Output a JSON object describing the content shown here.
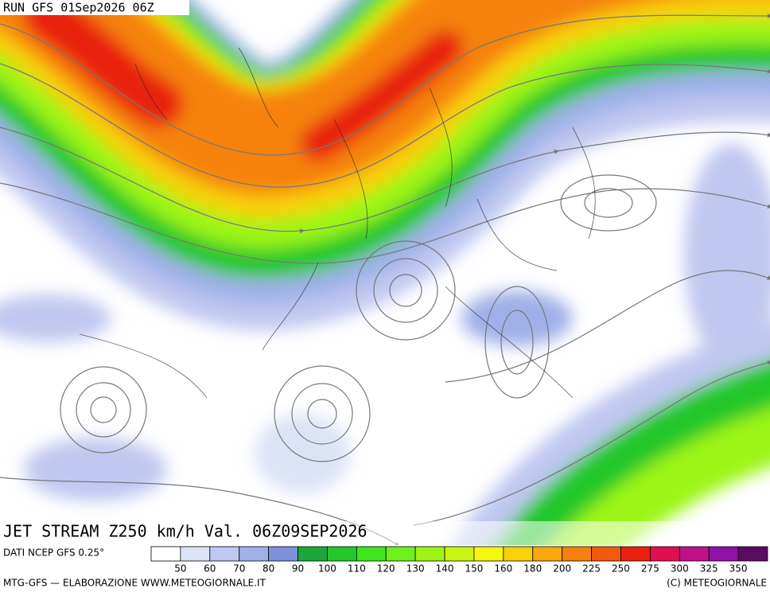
{
  "header": {
    "run": "RUN GFS 01Sep2026 06Z"
  },
  "map": {
    "title": "JET STREAM Z250 km/h Val. 06Z09SEP2026"
  },
  "legend": {
    "source": "DATI NCEP GFS 0.25°",
    "colors": [
      "#ffffff",
      "#dde3f7",
      "#bfc8f0",
      "#9fb0e8",
      "#7f90de",
      "#1aa83a",
      "#22c82a",
      "#3de61e",
      "#6ef01a",
      "#9cf516",
      "#c8f514",
      "#f6f50e",
      "#f8d00c",
      "#f8a70c",
      "#f5820c",
      "#f05a0c",
      "#e8200e",
      "#e01050",
      "#c0108c",
      "#9010a8",
      "#5c0c60"
    ],
    "ticks": [
      50,
      60,
      70,
      80,
      90,
      100,
      110,
      120,
      130,
      140,
      150,
      160,
      180,
      200,
      225,
      250,
      275,
      300,
      325,
      350
    ]
  },
  "footer": {
    "left": "MTG-GFS — ELABORAZIONE WWW.METEOGIORNALE.IT",
    "right": "(C) METEOGIORNALE"
  }
}
